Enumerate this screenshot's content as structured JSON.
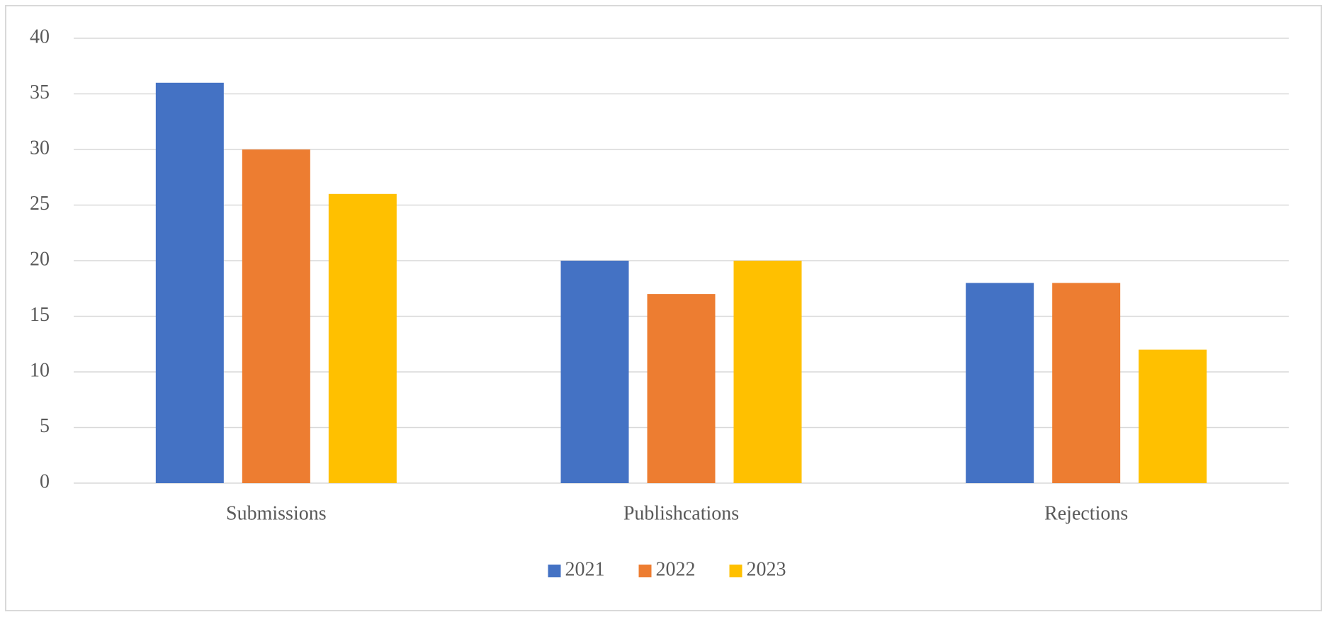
{
  "chart_data": {
    "type": "bar",
    "categories": [
      "Submissions",
      "Publishcations",
      "Rejections"
    ],
    "series": [
      {
        "name": "2021",
        "color": "#4472c4",
        "values": [
          36,
          20,
          18
        ]
      },
      {
        "name": "2022",
        "color": "#ed7d31",
        "values": [
          30,
          17,
          18
        ]
      },
      {
        "name": "2023",
        "color": "#ffc000",
        "values": [
          26,
          20,
          12
        ]
      }
    ],
    "ylim": [
      0,
      40
    ],
    "yticks": [
      0,
      5,
      10,
      15,
      20,
      25,
      30,
      35,
      40
    ],
    "grid": true,
    "legend": "bottom"
  }
}
